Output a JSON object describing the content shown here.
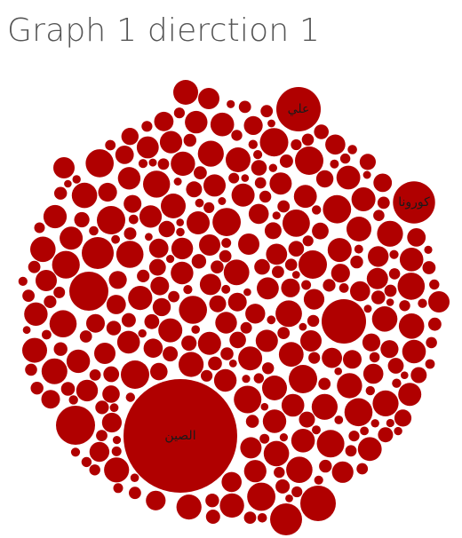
{
  "title": "Graph 1 dierction 1",
  "chart_data": {
    "type": "packed-bubble",
    "title": "Graph 1 dierction 1",
    "color": "#b00000",
    "labeled_bubbles": [
      {
        "label": "الصين",
        "relative_size": 1.0
      },
      {
        "label": "كورونا",
        "relative_size": 0.37
      },
      {
        "label": "علي",
        "relative_size": 0.39
      }
    ],
    "unlabeled_bubbles": "many small bubbles of varying size, no visible labels"
  }
}
